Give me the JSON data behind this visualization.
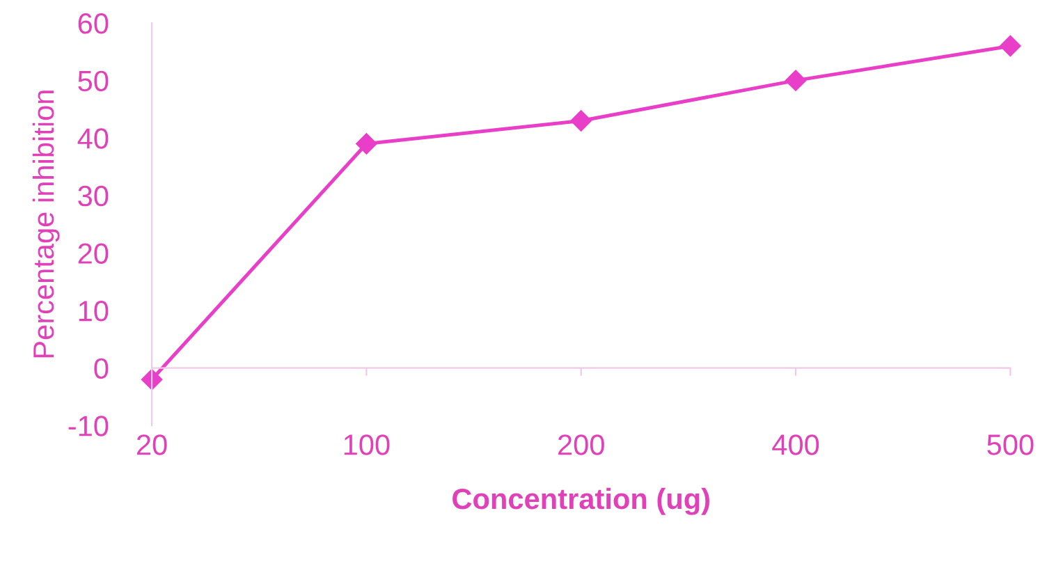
{
  "chart_data": {
    "type": "line",
    "xlabel": "Concentration (ug)",
    "ylabel": "Percentage inhibition",
    "categories": [
      "20",
      "100",
      "200",
      "400",
      "500"
    ],
    "series": [
      {
        "color": "#e83ec8",
        "values": [
          -2,
          39,
          43,
          50,
          56
        ]
      }
    ],
    "ylim": [
      -10,
      60
    ],
    "yticks": [
      -10,
      0,
      10,
      20,
      30,
      40,
      50,
      60
    ],
    "grid": false,
    "legend": false,
    "marker": "diamond",
    "line_style": "solid"
  }
}
